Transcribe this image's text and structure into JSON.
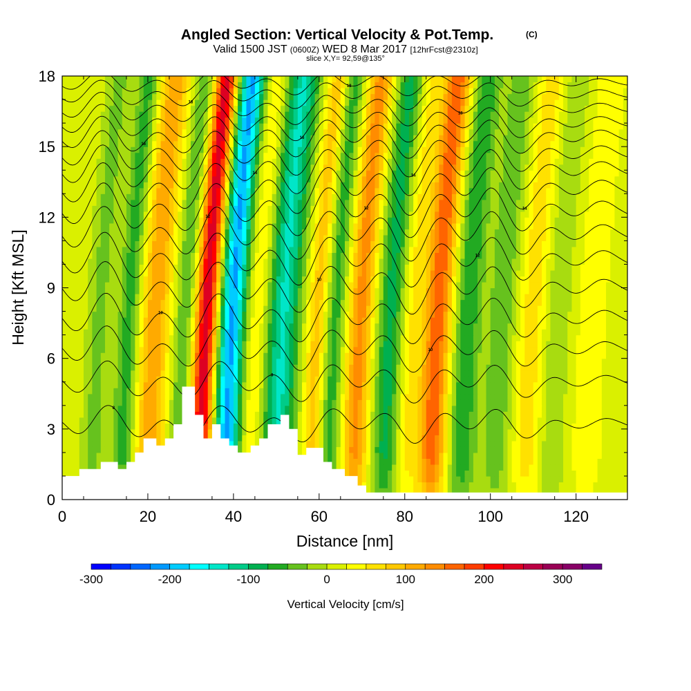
{
  "header": {
    "title": "Angled Section: Vertical Velocity & Pot.Temp.",
    "title_mark": "(C)",
    "valid_a": "Valid 1500 JST",
    "valid_z": "(0600Z)",
    "valid_b": "WED 8 Mar 2017",
    "valid_fcst": "[12hrFcst@2310z]",
    "slice": "slice X,Y= 92,59@135°"
  },
  "chart_data": {
    "type": "heatmap",
    "xlabel": "Distance [nm]",
    "ylabel": "Height [Kft MSL]",
    "xlim": [
      0,
      132
    ],
    "ylim": [
      0,
      18
    ],
    "xticks": [
      0,
      20,
      40,
      60,
      80,
      100,
      120
    ],
    "yticks": [
      0,
      3,
      6,
      9,
      12,
      15,
      18
    ],
    "xtick_labels": [
      "0",
      "20",
      "40",
      "60",
      "80",
      "100",
      "120"
    ],
    "ytick_labels": [
      "0",
      "3",
      "6",
      "9",
      "12",
      "15",
      "18"
    ],
    "fill_variable": "Vertical Velocity [cm/s]",
    "contour_variable": "Potential temperature",
    "colorbar": {
      "label": "Vertical Velocity [cm/s]",
      "ticks": [
        -300,
        -200,
        -100,
        0,
        100,
        200,
        300
      ],
      "tick_labels": [
        "-300",
        "-200",
        "-100",
        "0",
        "100",
        "200",
        "300"
      ],
      "bins": [
        {
          "lo": -300,
          "hi": -275,
          "color": "#0000ff"
        },
        {
          "lo": -275,
          "hi": -250,
          "color": "#0033ff"
        },
        {
          "lo": -250,
          "hi": -225,
          "color": "#0066ff"
        },
        {
          "lo": -225,
          "hi": -200,
          "color": "#0099ff"
        },
        {
          "lo": -200,
          "hi": -175,
          "color": "#00ccff"
        },
        {
          "lo": -175,
          "hi": -150,
          "color": "#00ffff"
        },
        {
          "lo": -150,
          "hi": -125,
          "color": "#00e6c8"
        },
        {
          "lo": -125,
          "hi": -100,
          "color": "#00cc88"
        },
        {
          "lo": -100,
          "hi": -75,
          "color": "#00b050"
        },
        {
          "lo": -75,
          "hi": -50,
          "color": "#22aa22"
        },
        {
          "lo": -50,
          "hi": -25,
          "color": "#66c21e"
        },
        {
          "lo": -25,
          "hi": 0,
          "color": "#a8dc10"
        },
        {
          "lo": 0,
          "hi": 25,
          "color": "#daf000"
        },
        {
          "lo": 25,
          "hi": 50,
          "color": "#ffff00"
        },
        {
          "lo": 50,
          "hi": 75,
          "color": "#ffe100"
        },
        {
          "lo": 75,
          "hi": 100,
          "color": "#ffc800"
        },
        {
          "lo": 100,
          "hi": 125,
          "color": "#ffaa00"
        },
        {
          "lo": 125,
          "hi": 150,
          "color": "#ff8c00"
        },
        {
          "lo": 150,
          "hi": 175,
          "color": "#ff6400"
        },
        {
          "lo": 175,
          "hi": 200,
          "color": "#ff3c00"
        },
        {
          "lo": 200,
          "hi": 225,
          "color": "#ff0000"
        },
        {
          "lo": 225,
          "hi": 250,
          "color": "#dd0022"
        },
        {
          "lo": 250,
          "hi": 275,
          "color": "#bb0044"
        },
        {
          "lo": 275,
          "hi": 300,
          "color": "#990055"
        },
        {
          "lo": 300,
          "hi": 325,
          "color": "#880066"
        },
        {
          "lo": 325,
          "hi": 350,
          "color": "#660088"
        }
      ]
    },
    "velocity_bands": [
      {
        "x": 7,
        "amp": -45,
        "width": 2.5
      },
      {
        "x": 14,
        "amp": -75,
        "width": 2.6
      },
      {
        "x": 20,
        "amp": 110,
        "width": 3.5
      },
      {
        "x": 27,
        "amp": -60,
        "width": 2.5
      },
      {
        "x": 32,
        "amp": 235,
        "width": 2.6
      },
      {
        "x": 38,
        "amp": -215,
        "width": 3.0
      },
      {
        "x": 44,
        "amp": 45,
        "width": 2.5
      },
      {
        "x": 50,
        "amp": -140,
        "width": 3.8
      },
      {
        "x": 58,
        "amp": 80,
        "width": 2.5
      },
      {
        "x": 62,
        "amp": -75,
        "width": 2.5
      },
      {
        "x": 68,
        "amp": 125,
        "width": 3.0
      },
      {
        "x": 75,
        "amp": -95,
        "width": 3.0
      },
      {
        "x": 80,
        "amp": 45,
        "width": 2.5
      },
      {
        "x": 86,
        "amp": 160,
        "width": 3.2
      },
      {
        "x": 93,
        "amp": -85,
        "width": 3.0
      },
      {
        "x": 101,
        "amp": -55,
        "width": 3.5
      },
      {
        "x": 108,
        "amp": 55,
        "width": 3.5
      },
      {
        "x": 114,
        "amp": -35,
        "width": 3.0
      },
      {
        "x": 122,
        "amp": 30,
        "width": 4.0
      }
    ],
    "terrain": [
      {
        "x": 0,
        "h": 1.0
      },
      {
        "x": 4,
        "h": 1.3
      },
      {
        "x": 8,
        "h": 1.3
      },
      {
        "x": 9,
        "h": 1.6
      },
      {
        "x": 13,
        "h": 1.3
      },
      {
        "x": 15,
        "h": 1.6
      },
      {
        "x": 17,
        "h": 2.0
      },
      {
        "x": 19,
        "h": 2.6
      },
      {
        "x": 22,
        "h": 2.3
      },
      {
        "x": 24,
        "h": 2.6
      },
      {
        "x": 26,
        "h": 3.2
      },
      {
        "x": 28,
        "h": 4.8
      },
      {
        "x": 31,
        "h": 3.6
      },
      {
        "x": 33,
        "h": 2.6
      },
      {
        "x": 35,
        "h": 3.2
      },
      {
        "x": 37,
        "h": 2.6
      },
      {
        "x": 39,
        "h": 2.3
      },
      {
        "x": 41,
        "h": 2.0
      },
      {
        "x": 44,
        "h": 2.3
      },
      {
        "x": 46,
        "h": 2.6
      },
      {
        "x": 48,
        "h": 3.2
      },
      {
        "x": 51,
        "h": 3.6
      },
      {
        "x": 53,
        "h": 3.0
      },
      {
        "x": 55,
        "h": 1.9
      },
      {
        "x": 57,
        "h": 2.2
      },
      {
        "x": 59,
        "h": 2.2
      },
      {
        "x": 61,
        "h": 1.6
      },
      {
        "x": 63,
        "h": 1.3
      },
      {
        "x": 66,
        "h": 1.0
      },
      {
        "x": 69,
        "h": 0.6
      },
      {
        "x": 71,
        "h": 0.3
      },
      {
        "x": 132,
        "h": 0.3
      }
    ],
    "isentropes": [
      {
        "base": 3.2,
        "amp": 0.9,
        "label": "8"
      },
      {
        "base": 5.0,
        "amp": 1.0,
        "label": "8"
      },
      {
        "base": 6.4,
        "amp": 1.1,
        "label": "10"
      },
      {
        "base": 7.7,
        "amp": 1.2,
        "label": "10"
      },
      {
        "base": 9.0,
        "amp": 1.25,
        "label": "10"
      },
      {
        "base": 10.2,
        "amp": 1.3,
        "label": "12"
      },
      {
        "base": 11.3,
        "amp": 1.3,
        "label": "12"
      },
      {
        "base": 12.3,
        "amp": 1.3,
        "label": "12"
      },
      {
        "base": 13.2,
        "amp": 1.25,
        "label": "14"
      },
      {
        "base": 14.0,
        "amp": 1.2,
        "label": "14"
      },
      {
        "base": 14.7,
        "amp": 1.1,
        "label": "14"
      },
      {
        "base": 15.4,
        "amp": 1.0,
        "label": "16"
      },
      {
        "base": 16.0,
        "amp": 0.9,
        "label": "16"
      },
      {
        "base": 16.6,
        "amp": 0.8,
        "label": "18"
      },
      {
        "base": 17.2,
        "amp": 0.7,
        "label": "18"
      },
      {
        "base": 17.7,
        "amp": 0.6,
        "label": "18"
      }
    ]
  }
}
